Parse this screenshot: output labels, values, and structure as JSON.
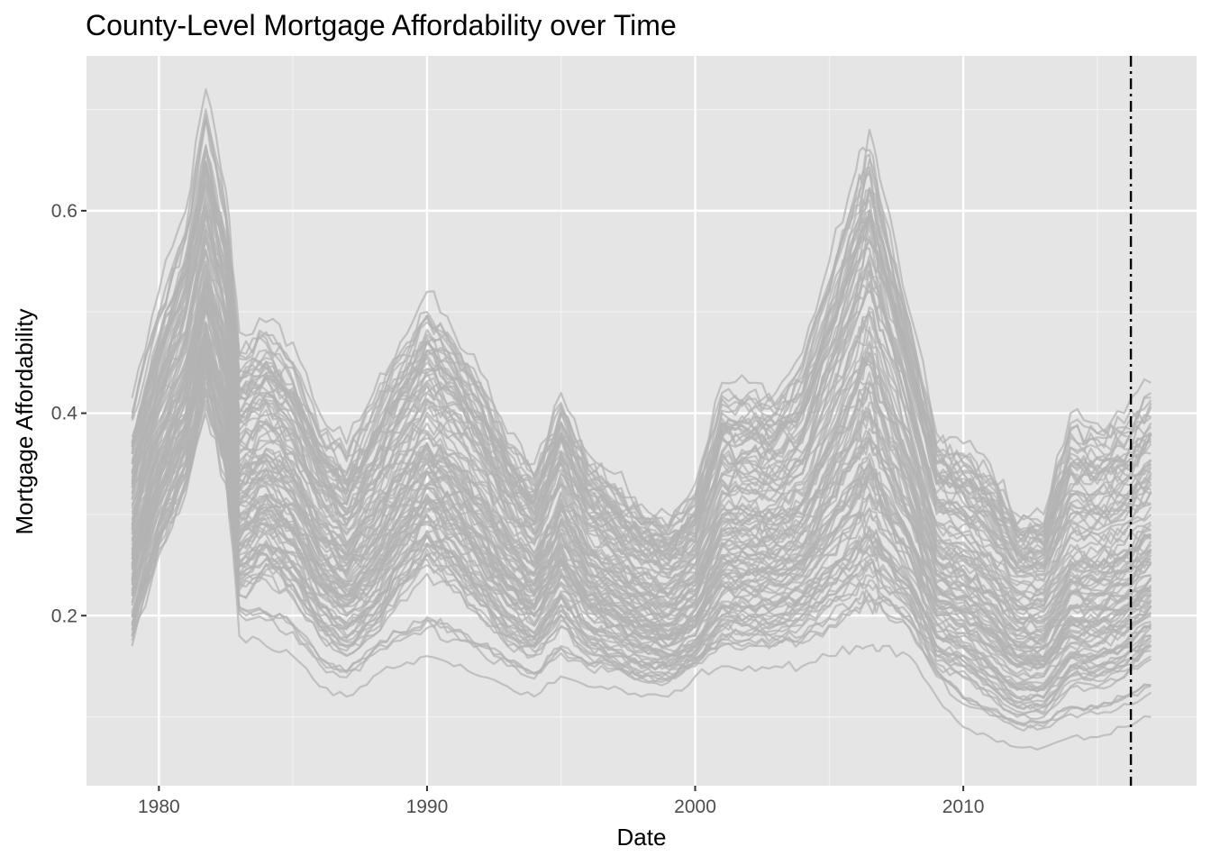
{
  "chart_data": {
    "type": "line",
    "title": "County-Level Mortgage Affordability over Time",
    "xlabel": "Date",
    "ylabel": "Mortgage Affordability",
    "x_range": [
      1977.3,
      2018.7
    ],
    "y_range": [
      0.032,
      0.753
    ],
    "x_ticks": [
      1980,
      1990,
      2000,
      2010
    ],
    "x_tick_labels": [
      "1980",
      "1990",
      "2000",
      "2010"
    ],
    "y_ticks": [
      0.2,
      0.4,
      0.6
    ],
    "y_tick_labels": [
      "0.2",
      "0.4",
      "0.6"
    ],
    "vline": {
      "x": 2016.25,
      "style": "dotdash",
      "color": "#000000"
    },
    "grid": true,
    "legend": "none",
    "colors": {
      "panel_background": "#e5e5e5",
      "grid_major": "#ffffff",
      "grid_minor": "#f2f2f2",
      "series_line": "#b3b3b3"
    },
    "series_count": 110,
    "x": [
      1979.0,
      1980.0,
      1981.0,
      1981.75,
      1982.5,
      1983.0,
      1984.0,
      1985.0,
      1986.0,
      1987.0,
      1988.0,
      1989.0,
      1990.0,
      1991.0,
      1992.0,
      1993.0,
      1994.0,
      1995.0,
      1996.0,
      1997.0,
      1998.0,
      1999.0,
      2000.0,
      2001.0,
      2002.0,
      2003.0,
      2004.0,
      2005.0,
      2006.0,
      2006.5,
      2007.0,
      2008.0,
      2009.0,
      2010.0,
      2011.0,
      2012.0,
      2013.0,
      2014.0,
      2015.0,
      2016.0,
      2017.0
    ],
    "series": [
      {
        "values": [
          0.415,
          0.52,
          0.6,
          0.72,
          0.62,
          0.48,
          0.49,
          0.47,
          0.4,
          0.37,
          0.42,
          0.47,
          0.52,
          0.48,
          0.44,
          0.38,
          0.35,
          0.42,
          0.36,
          0.34,
          0.31,
          0.3,
          0.33,
          0.43,
          0.43,
          0.42,
          0.46,
          0.55,
          0.64,
          0.68,
          0.62,
          0.5,
          0.38,
          0.37,
          0.35,
          0.3,
          0.3,
          0.4,
          0.39,
          0.4,
          0.43
        ]
      },
      {
        "values": [
          0.4,
          0.5,
          0.58,
          0.7,
          0.6,
          0.46,
          0.48,
          0.45,
          0.38,
          0.36,
          0.41,
          0.46,
          0.5,
          0.47,
          0.43,
          0.37,
          0.34,
          0.41,
          0.35,
          0.33,
          0.3,
          0.29,
          0.32,
          0.42,
          0.42,
          0.41,
          0.45,
          0.53,
          0.62,
          0.66,
          0.6,
          0.49,
          0.37,
          0.36,
          0.34,
          0.29,
          0.29,
          0.39,
          0.38,
          0.39,
          0.42
        ]
      },
      {
        "values": [
          0.37,
          0.47,
          0.55,
          0.66,
          0.57,
          0.44,
          0.46,
          0.43,
          0.37,
          0.34,
          0.39,
          0.44,
          0.49,
          0.46,
          0.42,
          0.36,
          0.33,
          0.4,
          0.34,
          0.32,
          0.29,
          0.28,
          0.31,
          0.4,
          0.4,
          0.4,
          0.43,
          0.52,
          0.6,
          0.64,
          0.58,
          0.47,
          0.36,
          0.35,
          0.33,
          0.29,
          0.29,
          0.38,
          0.38,
          0.38,
          0.41
        ]
      },
      {
        "values": [
          0.36,
          0.46,
          0.54,
          0.64,
          0.56,
          0.43,
          0.45,
          0.42,
          0.36,
          0.33,
          0.38,
          0.43,
          0.47,
          0.45,
          0.41,
          0.35,
          0.32,
          0.39,
          0.33,
          0.31,
          0.29,
          0.28,
          0.3,
          0.39,
          0.39,
          0.39,
          0.42,
          0.5,
          0.58,
          0.62,
          0.57,
          0.46,
          0.35,
          0.34,
          0.32,
          0.28,
          0.28,
          0.35,
          0.34,
          0.35,
          0.38
        ]
      },
      {
        "values": [
          0.34,
          0.44,
          0.52,
          0.62,
          0.54,
          0.42,
          0.44,
          0.41,
          0.35,
          0.32,
          0.37,
          0.42,
          0.45,
          0.44,
          0.4,
          0.34,
          0.31,
          0.38,
          0.32,
          0.3,
          0.28,
          0.27,
          0.29,
          0.38,
          0.38,
          0.38,
          0.4,
          0.48,
          0.56,
          0.6,
          0.55,
          0.45,
          0.34,
          0.33,
          0.32,
          0.27,
          0.27,
          0.33,
          0.33,
          0.34,
          0.36
        ]
      },
      {
        "values": [
          0.33,
          0.43,
          0.5,
          0.6,
          0.52,
          0.4,
          0.42,
          0.4,
          0.34,
          0.31,
          0.35,
          0.4,
          0.44,
          0.42,
          0.38,
          0.33,
          0.3,
          0.36,
          0.31,
          0.29,
          0.27,
          0.26,
          0.28,
          0.36,
          0.36,
          0.36,
          0.38,
          0.46,
          0.54,
          0.57,
          0.53,
          0.43,
          0.33,
          0.32,
          0.3,
          0.26,
          0.26,
          0.32,
          0.32,
          0.33,
          0.35
        ]
      },
      {
        "values": [
          0.35,
          0.42,
          0.48,
          0.58,
          0.5,
          0.39,
          0.41,
          0.38,
          0.33,
          0.3,
          0.34,
          0.38,
          0.42,
          0.4,
          0.37,
          0.32,
          0.29,
          0.35,
          0.3,
          0.28,
          0.26,
          0.25,
          0.27,
          0.34,
          0.34,
          0.34,
          0.36,
          0.44,
          0.51,
          0.54,
          0.5,
          0.41,
          0.31,
          0.3,
          0.28,
          0.25,
          0.25,
          0.3,
          0.3,
          0.31,
          0.33
        ]
      },
      {
        "values": [
          0.32,
          0.41,
          0.47,
          0.56,
          0.49,
          0.37,
          0.39,
          0.37,
          0.32,
          0.29,
          0.33,
          0.37,
          0.41,
          0.39,
          0.36,
          0.31,
          0.28,
          0.34,
          0.29,
          0.27,
          0.25,
          0.24,
          0.26,
          0.33,
          0.33,
          0.33,
          0.35,
          0.42,
          0.49,
          0.52,
          0.48,
          0.4,
          0.3,
          0.29,
          0.27,
          0.24,
          0.24,
          0.28,
          0.28,
          0.29,
          0.31
        ]
      },
      {
        "values": [
          0.31,
          0.4,
          0.46,
          0.55,
          0.48,
          0.36,
          0.38,
          0.36,
          0.31,
          0.28,
          0.32,
          0.36,
          0.39,
          0.37,
          0.34,
          0.3,
          0.27,
          0.33,
          0.28,
          0.26,
          0.24,
          0.23,
          0.25,
          0.32,
          0.32,
          0.32,
          0.34,
          0.4,
          0.47,
          0.5,
          0.46,
          0.38,
          0.29,
          0.28,
          0.26,
          0.23,
          0.23,
          0.27,
          0.27,
          0.28,
          0.3
        ]
      },
      {
        "values": [
          0.3,
          0.39,
          0.45,
          0.54,
          0.47,
          0.35,
          0.37,
          0.35,
          0.3,
          0.27,
          0.31,
          0.35,
          0.38,
          0.36,
          0.33,
          0.29,
          0.26,
          0.32,
          0.27,
          0.26,
          0.24,
          0.23,
          0.25,
          0.31,
          0.31,
          0.31,
          0.33,
          0.39,
          0.45,
          0.48,
          0.44,
          0.37,
          0.28,
          0.27,
          0.25,
          0.22,
          0.22,
          0.26,
          0.26,
          0.27,
          0.29
        ]
      },
      {
        "values": [
          0.29,
          0.38,
          0.44,
          0.53,
          0.46,
          0.34,
          0.36,
          0.34,
          0.29,
          0.27,
          0.3,
          0.34,
          0.37,
          0.35,
          0.32,
          0.28,
          0.25,
          0.31,
          0.26,
          0.25,
          0.23,
          0.22,
          0.24,
          0.3,
          0.3,
          0.3,
          0.31,
          0.37,
          0.43,
          0.46,
          0.42,
          0.35,
          0.27,
          0.26,
          0.24,
          0.21,
          0.21,
          0.25,
          0.25,
          0.26,
          0.28
        ]
      },
      {
        "values": [
          0.28,
          0.37,
          0.43,
          0.52,
          0.45,
          0.33,
          0.35,
          0.33,
          0.28,
          0.26,
          0.29,
          0.33,
          0.36,
          0.34,
          0.31,
          0.27,
          0.25,
          0.3,
          0.26,
          0.24,
          0.22,
          0.21,
          0.23,
          0.29,
          0.29,
          0.29,
          0.3,
          0.36,
          0.42,
          0.44,
          0.41,
          0.34,
          0.26,
          0.25,
          0.23,
          0.2,
          0.2,
          0.24,
          0.24,
          0.25,
          0.27
        ]
      },
      {
        "values": [
          0.27,
          0.36,
          0.42,
          0.51,
          0.44,
          0.32,
          0.34,
          0.32,
          0.27,
          0.25,
          0.28,
          0.32,
          0.35,
          0.33,
          0.3,
          0.26,
          0.24,
          0.29,
          0.25,
          0.23,
          0.22,
          0.21,
          0.22,
          0.28,
          0.28,
          0.28,
          0.29,
          0.34,
          0.4,
          0.42,
          0.39,
          0.33,
          0.25,
          0.24,
          0.22,
          0.19,
          0.19,
          0.23,
          0.23,
          0.24,
          0.26
        ]
      },
      {
        "values": [
          0.26,
          0.35,
          0.41,
          0.5,
          0.43,
          0.31,
          0.33,
          0.31,
          0.26,
          0.24,
          0.27,
          0.31,
          0.34,
          0.32,
          0.29,
          0.25,
          0.23,
          0.28,
          0.24,
          0.22,
          0.21,
          0.2,
          0.22,
          0.27,
          0.27,
          0.27,
          0.28,
          0.33,
          0.38,
          0.4,
          0.37,
          0.31,
          0.24,
          0.23,
          0.21,
          0.18,
          0.18,
          0.22,
          0.22,
          0.23,
          0.25
        ]
      },
      {
        "values": [
          0.25,
          0.34,
          0.4,
          0.49,
          0.42,
          0.3,
          0.32,
          0.3,
          0.25,
          0.23,
          0.26,
          0.3,
          0.33,
          0.31,
          0.28,
          0.24,
          0.22,
          0.27,
          0.23,
          0.21,
          0.2,
          0.19,
          0.21,
          0.26,
          0.26,
          0.26,
          0.27,
          0.31,
          0.36,
          0.38,
          0.35,
          0.3,
          0.23,
          0.22,
          0.2,
          0.17,
          0.17,
          0.21,
          0.21,
          0.22,
          0.24
        ]
      },
      {
        "values": [
          0.24,
          0.33,
          0.39,
          0.48,
          0.41,
          0.29,
          0.31,
          0.29,
          0.24,
          0.22,
          0.25,
          0.29,
          0.32,
          0.3,
          0.27,
          0.23,
          0.21,
          0.26,
          0.22,
          0.21,
          0.19,
          0.18,
          0.2,
          0.25,
          0.25,
          0.25,
          0.26,
          0.3,
          0.34,
          0.36,
          0.33,
          0.28,
          0.22,
          0.21,
          0.19,
          0.16,
          0.16,
          0.2,
          0.2,
          0.21,
          0.23
        ]
      },
      {
        "values": [
          0.23,
          0.32,
          0.38,
          0.47,
          0.4,
          0.28,
          0.3,
          0.28,
          0.24,
          0.22,
          0.24,
          0.28,
          0.31,
          0.29,
          0.26,
          0.23,
          0.21,
          0.25,
          0.21,
          0.2,
          0.19,
          0.18,
          0.19,
          0.24,
          0.24,
          0.24,
          0.25,
          0.28,
          0.32,
          0.34,
          0.31,
          0.27,
          0.21,
          0.2,
          0.18,
          0.16,
          0.15,
          0.19,
          0.19,
          0.2,
          0.22
        ]
      },
      {
        "values": [
          0.22,
          0.31,
          0.37,
          0.46,
          0.39,
          0.27,
          0.29,
          0.27,
          0.23,
          0.21,
          0.23,
          0.27,
          0.3,
          0.28,
          0.25,
          0.22,
          0.2,
          0.24,
          0.21,
          0.19,
          0.18,
          0.17,
          0.19,
          0.23,
          0.23,
          0.23,
          0.24,
          0.27,
          0.3,
          0.32,
          0.3,
          0.26,
          0.2,
          0.19,
          0.17,
          0.15,
          0.15,
          0.18,
          0.18,
          0.19,
          0.21
        ]
      },
      {
        "values": [
          0.21,
          0.3,
          0.36,
          0.45,
          0.38,
          0.26,
          0.28,
          0.26,
          0.22,
          0.2,
          0.22,
          0.26,
          0.29,
          0.27,
          0.24,
          0.21,
          0.19,
          0.23,
          0.2,
          0.19,
          0.17,
          0.17,
          0.18,
          0.22,
          0.22,
          0.22,
          0.23,
          0.26,
          0.29,
          0.3,
          0.28,
          0.24,
          0.19,
          0.18,
          0.16,
          0.14,
          0.14,
          0.17,
          0.17,
          0.18,
          0.2
        ]
      },
      {
        "values": [
          0.2,
          0.29,
          0.35,
          0.44,
          0.37,
          0.25,
          0.27,
          0.25,
          0.21,
          0.19,
          0.21,
          0.25,
          0.28,
          0.26,
          0.23,
          0.2,
          0.18,
          0.22,
          0.19,
          0.18,
          0.17,
          0.16,
          0.17,
          0.21,
          0.21,
          0.21,
          0.22,
          0.24,
          0.27,
          0.28,
          0.26,
          0.23,
          0.18,
          0.17,
          0.15,
          0.13,
          0.13,
          0.16,
          0.16,
          0.17,
          0.19
        ]
      },
      {
        "values": [
          0.19,
          0.28,
          0.34,
          0.43,
          0.36,
          0.24,
          0.26,
          0.24,
          0.2,
          0.18,
          0.2,
          0.24,
          0.27,
          0.25,
          0.22,
          0.19,
          0.17,
          0.21,
          0.18,
          0.17,
          0.16,
          0.15,
          0.17,
          0.2,
          0.2,
          0.2,
          0.21,
          0.23,
          0.25,
          0.26,
          0.25,
          0.22,
          0.17,
          0.16,
          0.14,
          0.12,
          0.12,
          0.15,
          0.15,
          0.16,
          0.18
        ]
      },
      {
        "values": [
          0.18,
          0.27,
          0.33,
          0.42,
          0.35,
          0.23,
          0.25,
          0.23,
          0.19,
          0.17,
          0.19,
          0.23,
          0.26,
          0.24,
          0.21,
          0.18,
          0.17,
          0.2,
          0.17,
          0.16,
          0.15,
          0.15,
          0.16,
          0.19,
          0.19,
          0.19,
          0.2,
          0.22,
          0.24,
          0.25,
          0.23,
          0.21,
          0.16,
          0.15,
          0.13,
          0.11,
          0.11,
          0.14,
          0.14,
          0.15,
          0.17
        ]
      },
      {
        "values": [
          0.17,
          0.26,
          0.32,
          0.4,
          0.33,
          0.22,
          0.24,
          0.22,
          0.18,
          0.16,
          0.18,
          0.22,
          0.25,
          0.23,
          0.2,
          0.17,
          0.16,
          0.19,
          0.16,
          0.15,
          0.14,
          0.14,
          0.15,
          0.18,
          0.18,
          0.18,
          0.19,
          0.21,
          0.22,
          0.23,
          0.22,
          0.2,
          0.15,
          0.14,
          0.12,
          0.1,
          0.1,
          0.13,
          0.13,
          0.14,
          0.16
        ]
      },
      {
        "values": [
          0.25,
          0.33,
          0.38,
          0.44,
          0.34,
          0.18,
          0.17,
          0.16,
          0.13,
          0.12,
          0.14,
          0.15,
          0.16,
          0.15,
          0.14,
          0.13,
          0.12,
          0.14,
          0.13,
          0.13,
          0.12,
          0.12,
          0.14,
          0.15,
          0.15,
          0.15,
          0.15,
          0.16,
          0.17,
          0.17,
          0.17,
          0.16,
          0.12,
          0.09,
          0.08,
          0.07,
          0.07,
          0.08,
          0.08,
          0.09,
          0.1
        ]
      }
    ]
  }
}
